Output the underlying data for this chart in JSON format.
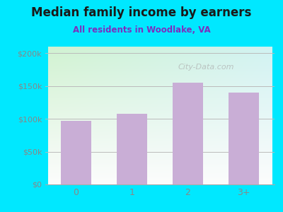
{
  "title": "Median family income by earners",
  "subtitle": "All residents in Woodlake, VA",
  "categories": [
    "0",
    "1",
    "2",
    "3+"
  ],
  "values": [
    97000,
    108000,
    155000,
    140000
  ],
  "bar_color": "#c9aed6",
  "background_outer": "#00e8ff",
  "plot_bg_topleft": "#c8edcc",
  "plot_bg_bottomright": "#e8f8f8",
  "title_color": "#1a1a1a",
  "subtitle_color": "#7b2fbe",
  "ytick_labels": [
    "$0",
    "$50k",
    "$100k",
    "$150k",
    "$200k"
  ],
  "ytick_values": [
    0,
    50000,
    100000,
    150000,
    200000
  ],
  "ylim": [
    0,
    210000
  ],
  "watermark": "City-Data.com",
  "grid_color": "#bbbbbb",
  "tick_color": "#888888"
}
